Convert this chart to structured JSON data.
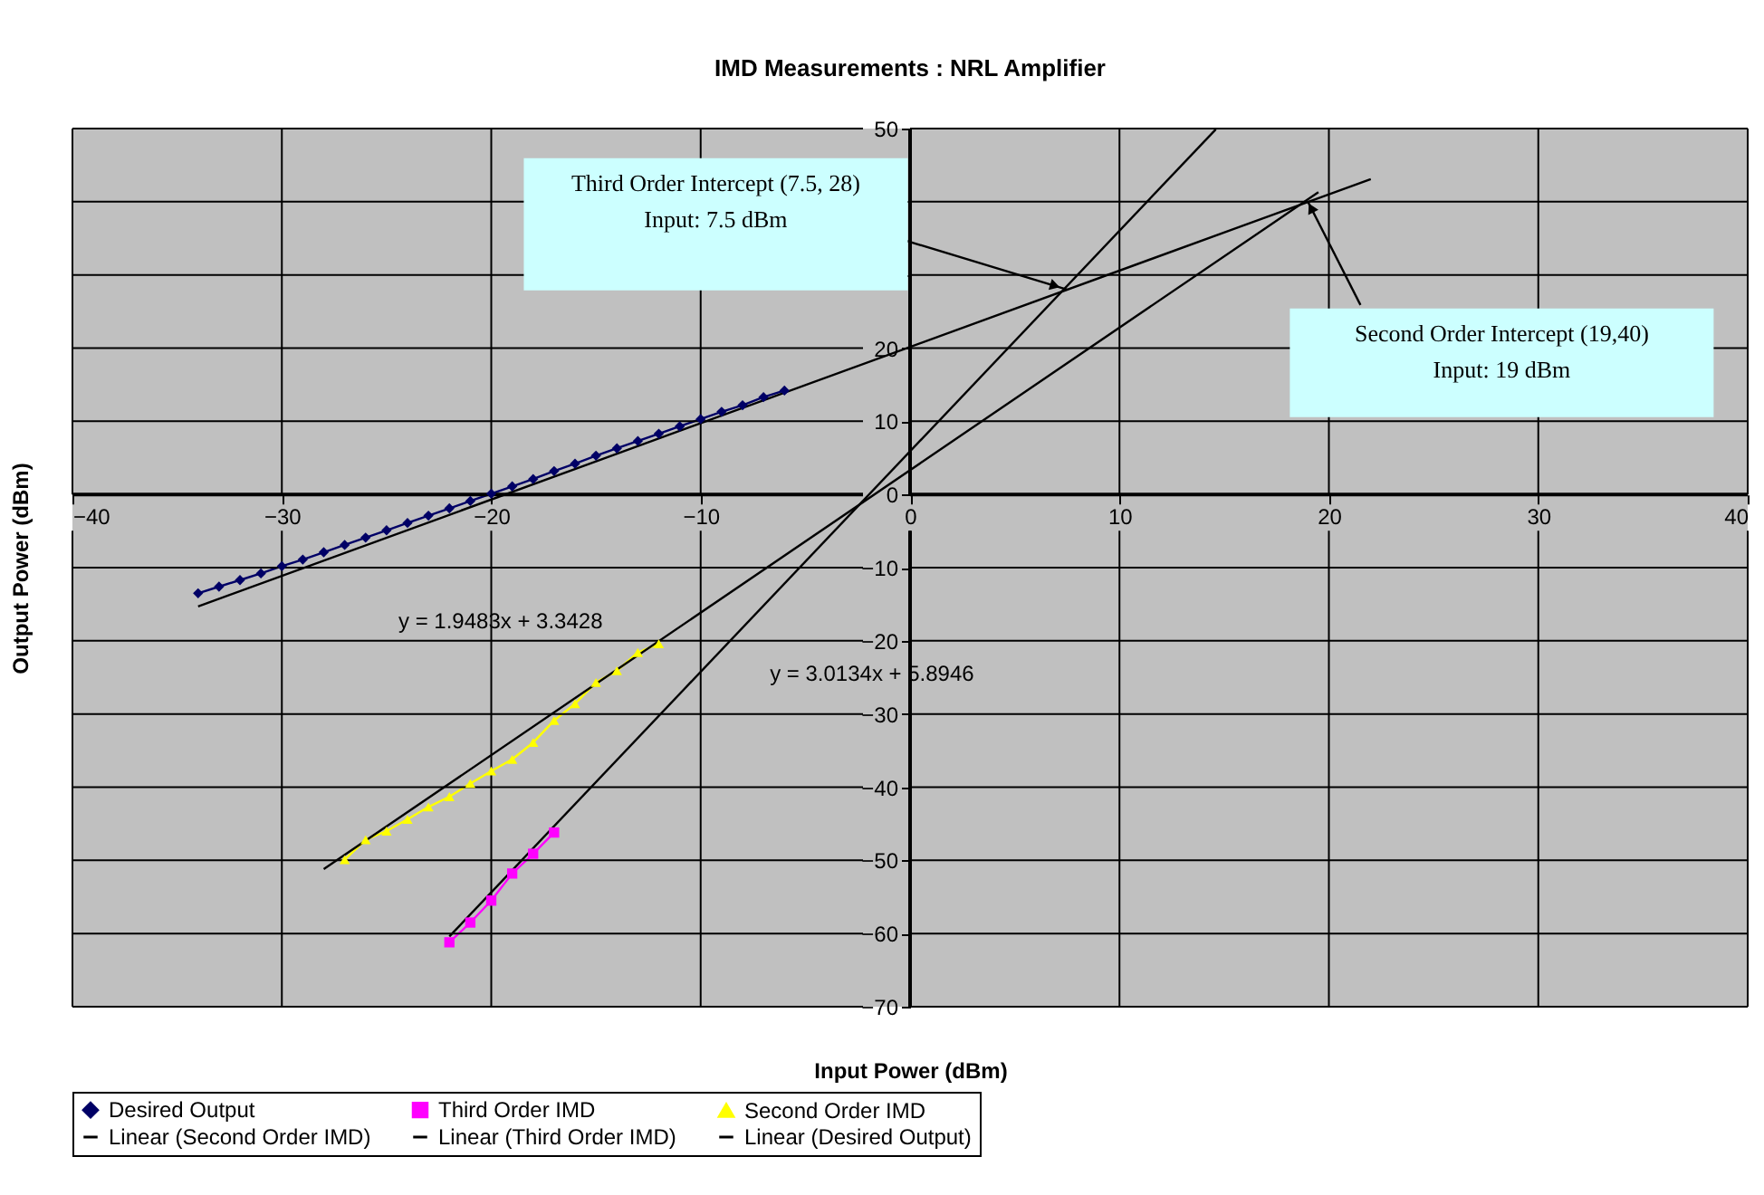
{
  "chart_data": {
    "type": "line",
    "title": "IMD Measurements : NRL Amplifier",
    "xlabel": "Input Power (dBm)",
    "ylabel": "Output Power (dBm)",
    "xlim": [
      -40,
      40
    ],
    "xticks": [
      -40,
      -30,
      -20,
      -10,
      0,
      10,
      20,
      30,
      40
    ],
    "ylim": [
      -70,
      50
    ],
    "yticks": [
      -70,
      -60,
      -50,
      -40,
      -30,
      -20,
      -10,
      0,
      10,
      20,
      {
        "value": 30,
        "label": null
      },
      {
        "value": 40,
        "label": null
      },
      50
    ],
    "grid": true,
    "legend": "bottom",
    "series": [
      {
        "name": "Desired Output",
        "color": "#000066",
        "marker": "diamond",
        "x": [
          -34,
          -33,
          -32,
          -31,
          -30,
          -29,
          -28,
          -27,
          -26,
          -25,
          -24,
          -23,
          -22,
          -21,
          -20,
          -19,
          -18,
          -17,
          -16,
          -15,
          -14,
          -13,
          -12,
          -11,
          -10,
          -9,
          -8,
          -7,
          -6
        ],
        "values": [
          -13.5,
          -12.6,
          -11.7,
          -10.8,
          -9.8,
          -8.9,
          -7.9,
          -6.9,
          -5.9,
          -4.9,
          -3.9,
          -2.9,
          -1.9,
          -0.9,
          0.1,
          1.1,
          2.1,
          3.2,
          4.2,
          5.3,
          6.3,
          7.3,
          8.3,
          9.3,
          10.3,
          11.3,
          12.2,
          13.3,
          14.2
        ]
      },
      {
        "name": "Third Order IMD",
        "color": "#ff00ff",
        "marker": "square",
        "x": [
          -22,
          -21,
          -20,
          -19,
          -18,
          -17
        ],
        "values": [
          -61.2,
          -58.5,
          -55.5,
          -51.8,
          -49.1,
          -46.2
        ]
      },
      {
        "name": "Second Order IMD",
        "color": "#ffff00",
        "marker": "triangle",
        "x": [
          -27,
          -26,
          -25,
          -24,
          -23,
          -22,
          -21,
          -20,
          -19,
          -18,
          -17,
          -16,
          -15,
          -14,
          -13,
          -12
        ],
        "values": [
          -49.9,
          -47.2,
          -46.0,
          -44.4,
          -42.7,
          -41.3,
          -39.5,
          -37.8,
          -36.2,
          -33.9,
          -30.9,
          -28.6,
          -25.7,
          -24.1,
          -21.6,
          -20.4
        ]
      },
      {
        "name": "Linear (Second Order IMD)",
        "color": "#000000",
        "type": "line",
        "x": [
          -28,
          19.5
        ],
        "values": [
          -51.2,
          41.3
        ]
      },
      {
        "name": "Linear (Third Order IMD)",
        "color": "#000000",
        "type": "line",
        "x": [
          -22,
          14.6
        ],
        "values": [
          -60.4,
          49.9
        ]
      },
      {
        "name": "Linear (Desired Output)",
        "color": "#000000",
        "type": "line",
        "x": [
          -34,
          22
        ],
        "values": [
          -15.3,
          43.1
        ]
      }
    ],
    "annotations": [
      {
        "text": "Third Order Intercept (7.5, 28)\nInput:  7.5 dBm",
        "x": 7.5,
        "y": 28
      },
      {
        "text": "Second Order Intercept (19,40)\nInput:  19 dBm",
        "x": 19,
        "y": 40
      },
      {
        "text": "y = 1.9483x + 3.3428",
        "x": -12,
        "y": -20
      },
      {
        "text": "y = 3.0134x + 5.8946",
        "x": -8.6,
        "y": -20
      }
    ]
  }
}
